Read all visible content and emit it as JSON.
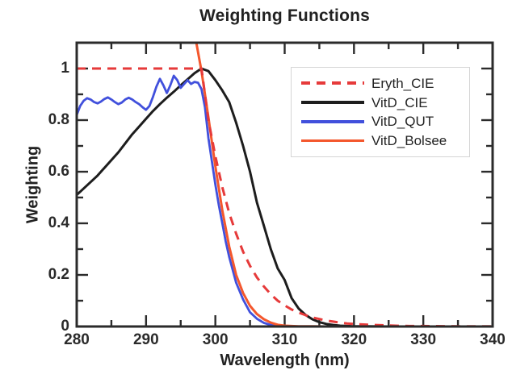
{
  "figure": {
    "title": "Weighting Functions",
    "x_axis_label": "Wavelength (nm)",
    "y_axis_label": "Weighting"
  },
  "chart_data": {
    "type": "line",
    "title": "Weighting Functions",
    "xlabel": "Wavelength (nm)",
    "ylabel": "Weighting",
    "xlim": [
      280,
      340
    ],
    "ylim": [
      0,
      1.1
    ],
    "grid": false,
    "x_major_ticks": [
      280,
      290,
      300,
      310,
      320,
      330,
      340
    ],
    "x_major_tick_labels": [
      "280",
      "290",
      "300",
      "310",
      "320",
      "330",
      "340"
    ],
    "x_minor_ticks": [
      285,
      295,
      305,
      315,
      325,
      335
    ],
    "y_major_ticks": [
      0,
      0.2,
      0.4,
      0.6,
      0.8,
      1
    ],
    "y_major_tick_labels": [
      "0",
      "0.2",
      "0.4",
      "0.6",
      "0.8",
      "1"
    ],
    "y_minor_ticks": [
      0.1,
      0.3,
      0.5,
      0.7,
      0.9
    ],
    "legend": {
      "position": "upper-right",
      "entries": [
        "Eryth_CIE",
        "VitD_CIE",
        "VitD_QUT",
        "VitD_Bolsee"
      ]
    },
    "series": [
      {
        "name": "Eryth_CIE",
        "color": "#e63a3a",
        "line_style": "dashed",
        "line_width": 3,
        "x": [
          280,
          285,
          290,
          295,
          297,
          298,
          298.5,
          299,
          300,
          301,
          302,
          303,
          304,
          305,
          306,
          307,
          308,
          309,
          310,
          311,
          312,
          313,
          314,
          315,
          316,
          317,
          318,
          319,
          320,
          322,
          324,
          326,
          328,
          330,
          335,
          340
        ],
        "y": [
          1,
          1,
          1,
          1,
          1,
          1,
          0.9,
          0.8,
          0.66,
          0.54,
          0.44,
          0.36,
          0.29,
          0.235,
          0.19,
          0.155,
          0.125,
          0.1,
          0.082,
          0.066,
          0.054,
          0.044,
          0.035,
          0.029,
          0.023,
          0.019,
          0.015,
          0.012,
          0.01,
          0.007,
          0.005,
          0.003,
          0.002,
          0.002,
          0.001,
          0.001
        ]
      },
      {
        "name": "VitD_CIE",
        "color": "#1d1d1d",
        "line_style": "solid",
        "line_width": 3,
        "x": [
          280,
          281,
          282,
          283,
          284,
          285,
          286,
          287,
          288,
          289,
          290,
          291,
          292,
          293,
          294,
          295,
          296,
          297,
          298,
          299,
          300,
          301,
          302,
          303,
          304,
          305,
          306,
          307,
          308,
          309,
          310,
          311,
          312,
          313,
          314,
          315,
          316,
          317,
          318,
          319,
          320,
          322,
          325,
          330,
          335,
          340
        ],
        "y": [
          0.51,
          0.535,
          0.56,
          0.585,
          0.615,
          0.645,
          0.675,
          0.71,
          0.745,
          0.775,
          0.805,
          0.835,
          0.862,
          0.887,
          0.91,
          0.935,
          0.958,
          0.982,
          1.0,
          0.99,
          0.955,
          0.915,
          0.87,
          0.79,
          0.7,
          0.6,
          0.48,
          0.39,
          0.3,
          0.225,
          0.18,
          0.11,
          0.07,
          0.045,
          0.028,
          0.017,
          0.01,
          0.006,
          0.003,
          0.002,
          0.001,
          0.001,
          0.0,
          0.0,
          0.0,
          0.0
        ]
      },
      {
        "name": "VitD_QUT",
        "color": "#4150dc",
        "line_style": "solid",
        "line_width": 2.8,
        "x": [
          280,
          280.5,
          281,
          281.5,
          282,
          282.5,
          283,
          283.5,
          284,
          284.5,
          285,
          285.5,
          286,
          286.5,
          287,
          287.5,
          288,
          288.5,
          289,
          289.5,
          290,
          290.5,
          291,
          291.5,
          292,
          292.5,
          293,
          293.5,
          294,
          294.5,
          295,
          295.5,
          296,
          296.5,
          297,
          297.5,
          298,
          298.5,
          299,
          299.5,
          300,
          300.5,
          301,
          301.5,
          302,
          302.5,
          303,
          304,
          305,
          306,
          307,
          308,
          309,
          310,
          312,
          315,
          320,
          330,
          340
        ],
        "y": [
          0.82,
          0.855,
          0.875,
          0.885,
          0.88,
          0.87,
          0.865,
          0.872,
          0.882,
          0.888,
          0.88,
          0.87,
          0.862,
          0.868,
          0.88,
          0.887,
          0.88,
          0.87,
          0.862,
          0.85,
          0.84,
          0.855,
          0.89,
          0.93,
          0.96,
          0.935,
          0.905,
          0.935,
          0.972,
          0.955,
          0.925,
          0.94,
          0.955,
          0.94,
          0.948,
          0.945,
          0.92,
          0.85,
          0.73,
          0.64,
          0.55,
          0.47,
          0.4,
          0.33,
          0.27,
          0.22,
          0.17,
          0.105,
          0.055,
          0.03,
          0.014,
          0.006,
          0.002,
          0.001,
          0.0,
          0.0,
          0.0,
          0.0,
          0.0
        ]
      },
      {
        "name": "VitD_Bolsee",
        "color": "#f4572d",
        "line_style": "solid",
        "line_width": 3,
        "x": [
          297.25,
          298,
          299,
          300,
          301,
          302,
          303,
          304,
          305,
          306,
          307,
          308,
          309,
          310,
          311,
          312,
          314,
          316,
          318,
          320,
          325,
          330,
          335,
          340
        ],
        "y": [
          1.1,
          0.99,
          0.81,
          0.62,
          0.45,
          0.31,
          0.2,
          0.13,
          0.08,
          0.048,
          0.028,
          0.015,
          0.007,
          0.003,
          0.002,
          0.001,
          0.001,
          0.0,
          0.0,
          0.0,
          0.0,
          0.0,
          0.0,
          0.0
        ]
      }
    ]
  },
  "style": {
    "frame_color": "#2b2b2b",
    "background_color": "#ffffff",
    "legend_border_color": "#d5d5d5"
  }
}
